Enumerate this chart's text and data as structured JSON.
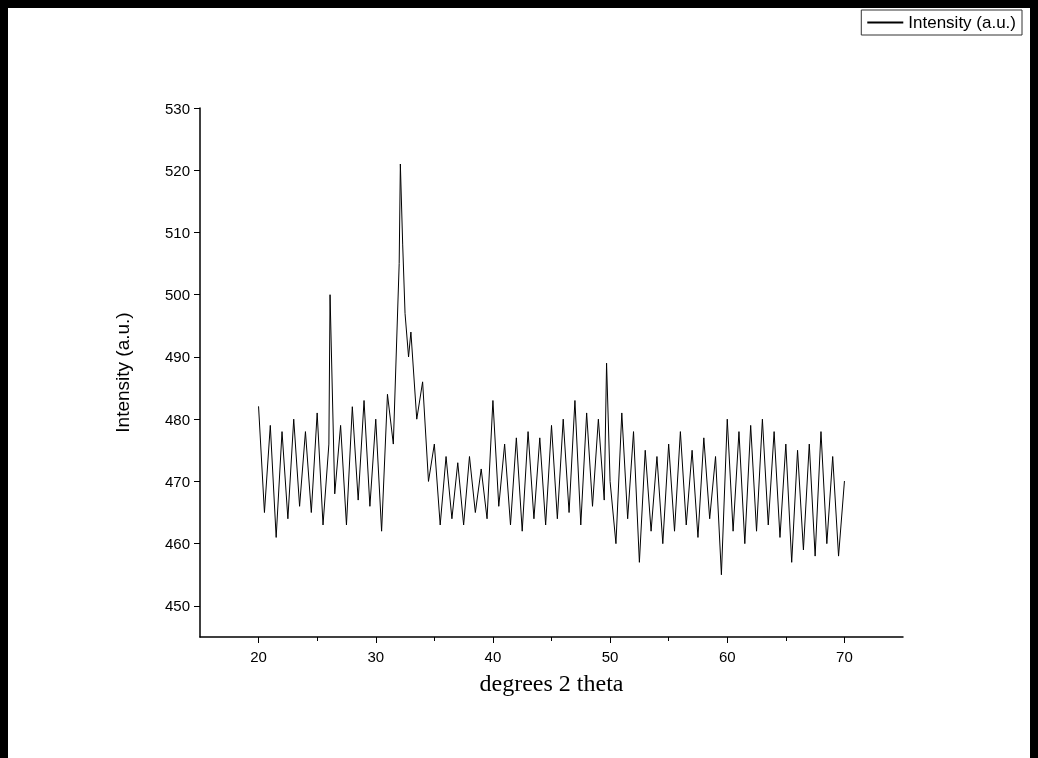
{
  "chart_data": {
    "type": "line",
    "xlabel": "degrees 2 theta",
    "ylabel": "Intensity (a.u.)",
    "xlim": [
      15,
      75
    ],
    "xticks": [
      20,
      30,
      40,
      50,
      60,
      70
    ],
    "ylim": [
      445,
      530
    ],
    "yticks": [
      450,
      460,
      470,
      480,
      490,
      500,
      510,
      520,
      530
    ],
    "grid": false,
    "legend": "top right",
    "marker": "none",
    "line_style": "solid",
    "series": [
      {
        "name": "Intensity (a.u.)",
        "color": "#000000",
        "x": [
          20,
          20.5,
          21,
          21.5,
          22,
          22.5,
          23,
          23.5,
          24,
          24.5,
          25,
          25.5,
          26,
          26.1,
          26.5,
          27,
          27.5,
          28,
          28.5,
          29,
          29.5,
          30,
          30.5,
          31,
          31.5,
          32,
          32.1,
          32.3,
          32.5,
          32.8,
          33,
          33.5,
          34,
          34.5,
          35,
          35.5,
          36,
          36.5,
          37,
          37.5,
          38,
          38.5,
          39,
          39.5,
          40,
          40.5,
          41,
          41.5,
          42,
          42.5,
          43,
          43.5,
          44,
          44.5,
          45,
          45.5,
          46,
          46.5,
          47,
          47.5,
          48,
          48.5,
          49,
          49.5,
          49.7,
          50,
          50.5,
          51,
          51.5,
          52,
          52.5,
          53,
          53.5,
          54,
          54.5,
          55,
          55.5,
          56,
          56.5,
          57,
          57.5,
          58,
          58.5,
          59,
          59.5,
          60,
          60.5,
          61,
          61.5,
          62,
          62.5,
          63,
          63.5,
          64,
          64.5,
          65,
          65.5,
          66,
          66.5,
          67,
          67.5,
          68,
          68.5,
          69,
          69.5,
          70
        ],
        "values": [
          482,
          465,
          479,
          461,
          478,
          464,
          480,
          466,
          478,
          465,
          481,
          463,
          476,
          500,
          468,
          479,
          463,
          482,
          467,
          483,
          466,
          480,
          462,
          484,
          476,
          505,
          521,
          508,
          497,
          490,
          494,
          480,
          486,
          470,
          476,
          463,
          474,
          464,
          473,
          463,
          474,
          465,
          472,
          464,
          483,
          466,
          476,
          463,
          477,
          462,
          478,
          464,
          477,
          463,
          479,
          464,
          480,
          465,
          483,
          463,
          481,
          466,
          480,
          467,
          489,
          470,
          460,
          481,
          464,
          478,
          457,
          475,
          462,
          474,
          460,
          476,
          462,
          478,
          463,
          475,
          461,
          477,
          464,
          474,
          455,
          480,
          462,
          478,
          460,
          479,
          462,
          480,
          463,
          478,
          461,
          476,
          457,
          475,
          459,
          476,
          458,
          478,
          460,
          474,
          458,
          470
        ]
      }
    ]
  }
}
